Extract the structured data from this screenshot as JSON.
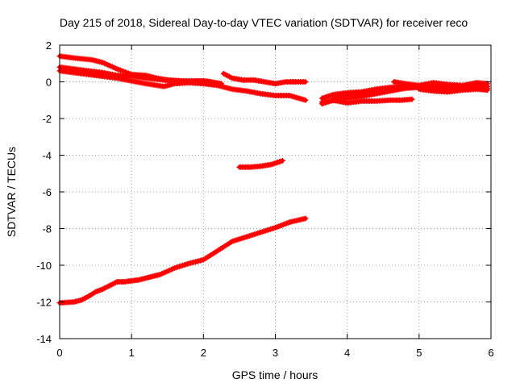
{
  "chart_data": {
    "type": "scatter",
    "title": "Day 215 of 2018, Sidereal Day-to-day VTEC variation (SDTVAR) for receiver reco",
    "xlabel": "GPS time / hours",
    "ylabel": "SDTVAR / TECUs",
    "xlim": [
      0,
      6
    ],
    "ylim": [
      -14,
      2
    ],
    "x_ticks": [
      0,
      1,
      2,
      3,
      4,
      5,
      6
    ],
    "x_tick_labels": [
      "0",
      "1",
      "2",
      "3",
      "4",
      "5",
      "6"
    ],
    "y_ticks": [
      -14,
      -12,
      -10,
      -8,
      -6,
      -4,
      -2,
      0,
      2
    ],
    "y_tick_labels": [
      "-14",
      "-12",
      "-10",
      "-8",
      "-6",
      "-4",
      "-2",
      "0",
      "2"
    ],
    "grid": true,
    "legend": false,
    "marker": "plus",
    "color": "#ff0000",
    "series": [
      {
        "x": [
          0.0,
          0.2,
          0.45,
          0.6,
          0.8,
          1.0,
          1.2,
          1.35,
          1.5,
          1.7,
          1.9,
          2.1,
          2.25
        ],
        "y": [
          1.4,
          1.3,
          1.2,
          1.05,
          0.7,
          0.4,
          0.35,
          0.2,
          0.1,
          0.05,
          0.05,
          0.0,
          -0.1
        ]
      },
      {
        "x": [
          0.0,
          0.2,
          0.4,
          0.6,
          0.8,
          1.0,
          1.2,
          1.45,
          1.6,
          1.8,
          2.0,
          2.1
        ],
        "y": [
          0.8,
          0.7,
          0.6,
          0.5,
          0.35,
          0.3,
          0.2,
          0.1,
          0.05,
          0.0,
          0.05,
          0.0
        ]
      },
      {
        "x": [
          0.0,
          0.2,
          0.4,
          0.6,
          0.8,
          1.0,
          1.2,
          1.45,
          1.6,
          1.8,
          2.0,
          2.2,
          2.4,
          2.6,
          2.8,
          3.0,
          3.2,
          3.42
        ],
        "y": [
          0.6,
          0.5,
          0.4,
          0.3,
          0.2,
          0.05,
          -0.1,
          -0.25,
          -0.1,
          -0.05,
          -0.1,
          -0.2,
          -0.4,
          -0.5,
          -0.65,
          -0.75,
          -0.75,
          -1.0
        ]
      },
      {
        "x": [
          2.28,
          2.4,
          2.55,
          2.7,
          2.85,
          3.0,
          3.15,
          3.3,
          3.42
        ],
        "y": [
          0.45,
          0.2,
          0.1,
          0.1,
          0.0,
          -0.1,
          0.0,
          0.0,
          0.0
        ]
      },
      {
        "x": [
          2.5,
          2.65,
          2.8,
          2.95,
          3.1
        ],
        "y": [
          -4.65,
          -4.65,
          -4.6,
          -4.5,
          -4.3
        ]
      },
      {
        "x": [
          0.0,
          0.2,
          0.3,
          0.4,
          0.5,
          0.6,
          0.7,
          0.8,
          0.9,
          1.0,
          1.1,
          1.2,
          1.3,
          1.4,
          1.6,
          1.8,
          2.0,
          2.2,
          2.4,
          2.6,
          2.8,
          3.0,
          3.2,
          3.42
        ],
        "y": [
          -12.05,
          -12.0,
          -11.9,
          -11.7,
          -11.45,
          -11.3,
          -11.1,
          -10.9,
          -10.9,
          -10.85,
          -10.8,
          -10.7,
          -10.6,
          -10.5,
          -10.15,
          -9.9,
          -9.7,
          -9.2,
          -8.7,
          -8.45,
          -8.2,
          -7.95,
          -7.65,
          -7.45
        ]
      },
      {
        "x": [
          3.65,
          3.8,
          4.0,
          4.2,
          4.4,
          4.6,
          4.8,
          5.0,
          5.2,
          5.4,
          5.6,
          5.8,
          5.95
        ],
        "y": [
          -0.9,
          -0.7,
          -0.6,
          -0.55,
          -0.4,
          -0.3,
          -0.25,
          -0.2,
          -0.3,
          -0.3,
          -0.25,
          -0.2,
          -0.25
        ]
      },
      {
        "x": [
          3.65,
          3.85,
          4.0,
          4.2,
          4.4,
          4.6,
          4.8,
          5.0,
          5.2,
          5.4,
          5.6,
          5.8,
          5.95
        ],
        "y": [
          -1.1,
          -1.0,
          -0.9,
          -0.8,
          -0.65,
          -0.5,
          -0.35,
          -0.2,
          -0.05,
          -0.15,
          -0.2,
          -0.05,
          -0.1
        ]
      },
      {
        "x": [
          3.65,
          3.8,
          4.0,
          4.2,
          4.4,
          4.6,
          4.75,
          4.9
        ],
        "y": [
          -1.2,
          -1.0,
          -1.15,
          -1.05,
          -1.05,
          -1.0,
          -1.0,
          -0.95
        ]
      },
      {
        "x": [
          3.8,
          4.0,
          4.2,
          4.4,
          4.6,
          4.8,
          5.0
        ],
        "y": [
          -0.85,
          -0.75,
          -0.7,
          -0.55,
          -0.45,
          -0.35,
          -0.3
        ]
      },
      {
        "x": [
          4.65,
          4.8,
          5.0,
          5.2,
          5.4,
          5.6,
          5.8,
          5.95
        ],
        "y": [
          0.0,
          -0.1,
          -0.2,
          -0.15,
          -0.4,
          -0.3,
          -0.35,
          -0.35
        ]
      },
      {
        "x": [
          5.0,
          5.2,
          5.4,
          5.6,
          5.8,
          5.95
        ],
        "y": [
          -0.4,
          -0.5,
          -0.55,
          -0.45,
          -0.4,
          -0.45
        ]
      }
    ]
  }
}
